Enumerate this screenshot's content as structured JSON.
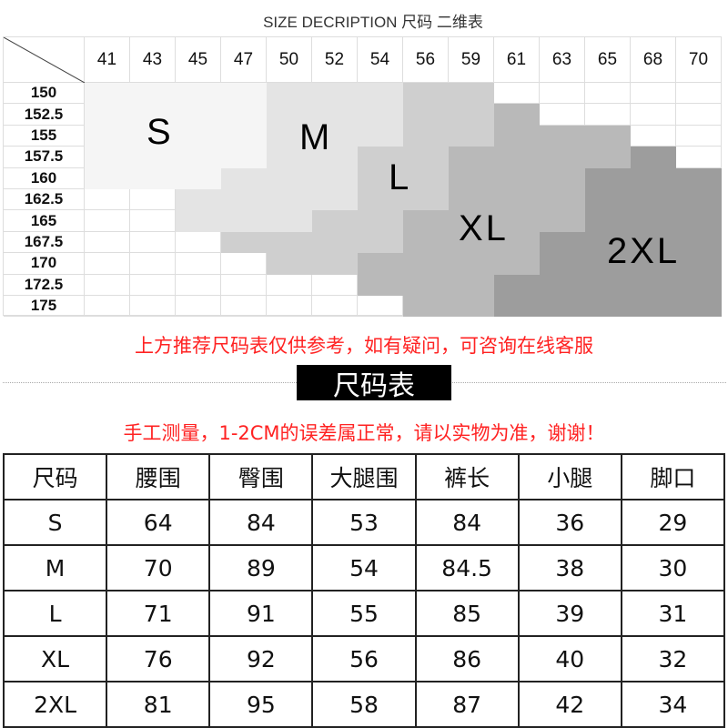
{
  "title": "SIZE DECRIPTION  尺码 二维表",
  "grid": {
    "waist_headers": [
      "41",
      "43",
      "45",
      "47",
      "50",
      "52",
      "54",
      "56",
      "59",
      "61",
      "63",
      "65",
      "68",
      "70"
    ],
    "height_headers": [
      "150",
      "152.5",
      "155",
      "157.5",
      "160",
      "162.5",
      "165",
      "167.5",
      "170",
      "172.5",
      "175"
    ],
    "size_labels": [
      "S",
      "M",
      "L",
      "XL",
      "2XL"
    ],
    "size_colors": {
      "S": "#f5f5f5",
      "M": "#e4e4e4",
      "L": "#cfcfcf",
      "XL": "#b9b9b9",
      "2XL": "#9d9d9d"
    },
    "cells": [
      "SSSSMMMLL.....",
      "SSSSMMMLLX....",
      "SSSSMMMLLXXX..",
      "SSSSMMLLXXXXZ.",
      "SSSMMMLLXXXZZZ",
      "..MMMMLLXXXZZZ",
      "..MMMLLXXXXZZZ",
      "...LLLLXXXZZZZ",
      "....LLXXXXZZZZ",
      "......XXXZZZZZ",
      ".......XXZZZZZ"
    ]
  },
  "notice1": "上方推荐尺码表仅供参考，如有疑问，可咨询在线客服",
  "badge": "尺码表",
  "notice2": "手工测量，1-2CM的误差属正常，请以实物为准，谢谢！",
  "table": {
    "headers": [
      "尺码",
      "腰围",
      "臀围",
      "大腿围",
      "裤长",
      "小腿",
      "脚口"
    ],
    "rows": [
      [
        "S",
        "64",
        "84",
        "53",
        "84",
        "36",
        "29"
      ],
      [
        "M",
        "70",
        "89",
        "54",
        "84.5",
        "38",
        "30"
      ],
      [
        "L",
        "71",
        "91",
        "55",
        "85",
        "39",
        "31"
      ],
      [
        "XL",
        "76",
        "92",
        "56",
        "86",
        "40",
        "32"
      ],
      [
        "2XL",
        "81",
        "95",
        "58",
        "87",
        "42",
        "34"
      ]
    ]
  }
}
